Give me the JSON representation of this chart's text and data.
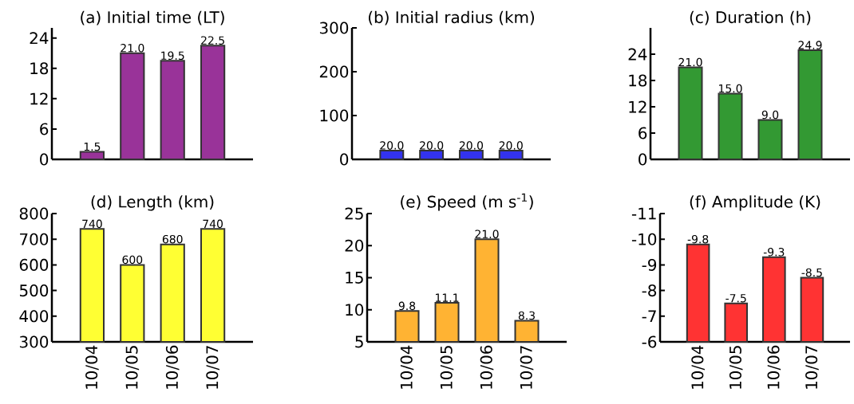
{
  "chart_data": [
    {
      "type": "bar",
      "title": "(a) Initial time (LT)",
      "categories": [
        null,
        null,
        null,
        null
      ],
      "values": [
        1.5,
        21.0,
        19.5,
        22.5
      ],
      "value_labels": [
        "1.5",
        "21.0",
        "19.5",
        "22.5"
      ],
      "color": "#993399",
      "ylim": [
        0,
        26
      ],
      "yticks": [
        0,
        6,
        12,
        18,
        24
      ],
      "tick_labels": "y"
    },
    {
      "type": "bar",
      "title": "(b) Initial radius (km)",
      "categories": [
        null,
        null,
        null,
        null
      ],
      "values": [
        20.0,
        20.0,
        20.0,
        20.0
      ],
      "value_labels": [
        "20.0",
        "20.0",
        "20.0",
        "20.0"
      ],
      "color": "#3333ee",
      "ylim": [
        0,
        300
      ],
      "yticks": [
        0,
        100,
        200,
        300
      ],
      "tick_labels": "y"
    },
    {
      "type": "bar",
      "title": "(c) Duration (h)",
      "categories": [
        null,
        null,
        null,
        null
      ],
      "values": [
        21.0,
        15.0,
        9.0,
        24.9
      ],
      "value_labels": [
        "21.0",
        "15.0",
        "9.0",
        "24.9"
      ],
      "color": "#339933",
      "ylim": [
        0,
        30
      ],
      "yticks": [
        0,
        6,
        12,
        18,
        24
      ],
      "tick_labels": "y"
    },
    {
      "type": "bar",
      "title": "(d) Length (km)",
      "categories": [
        "10/04",
        "10/05",
        "10/06",
        "10/07"
      ],
      "values": [
        740,
        600,
        680,
        740
      ],
      "value_labels": [
        "740",
        "600",
        "680",
        "740"
      ],
      "color": "#ffff33",
      "ylim": [
        300,
        800
      ],
      "yticks": [
        300,
        400,
        500,
        600,
        700,
        800
      ]
    },
    {
      "type": "bar",
      "title": "(e) Speed (m s$^{-1}$)",
      "categories": [
        "10/04",
        "10/05",
        "10/06",
        "10/07"
      ],
      "values": [
        9.8,
        11.1,
        21.0,
        8.3
      ],
      "value_labels": [
        "9.8",
        "11.1",
        "21.0",
        "8.3"
      ],
      "color": "#ffb333",
      "ylim": [
        5,
        25
      ],
      "yticks": [
        5,
        10,
        15,
        20,
        25
      ]
    },
    {
      "type": "bar",
      "title": "(f) Amplitude (K)",
      "categories": [
        "10/04",
        "10/05",
        "10/06",
        "10/07"
      ],
      "values": [
        -9.8,
        -7.5,
        -9.3,
        -8.5
      ],
      "value_labels": [
        "-9.8",
        "-7.5",
        "-9.3",
        "-8.5"
      ],
      "color": "#ff3333",
      "ylim": [
        -6,
        -11
      ],
      "yticks": [
        -6,
        -7,
        -8,
        -9,
        -10,
        -11
      ]
    }
  ]
}
